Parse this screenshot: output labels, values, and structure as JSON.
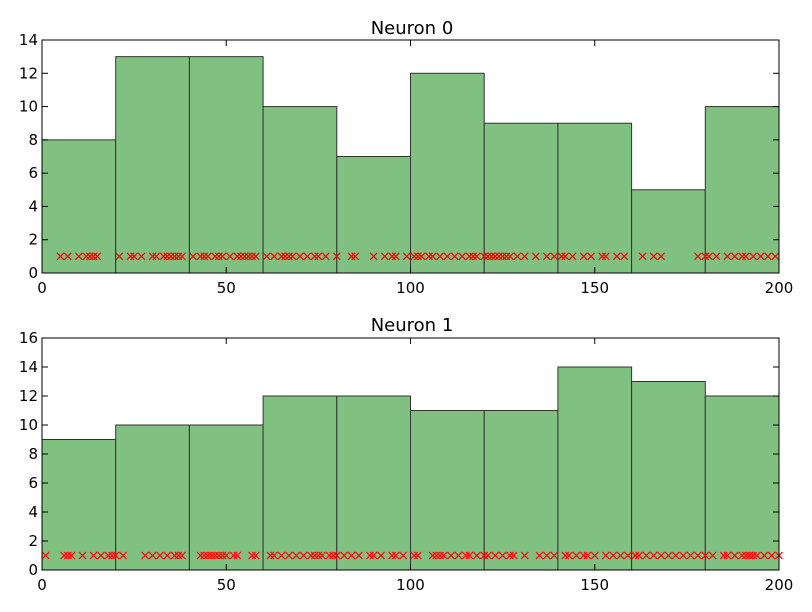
{
  "chart_data": [
    {
      "type": "bar",
      "title": "Neuron 0",
      "xlabel": "",
      "ylabel": "",
      "xlim": [
        0,
        200
      ],
      "ylim": [
        0,
        14
      ],
      "xticks": [
        "0",
        "50",
        "100",
        "150",
        "200"
      ],
      "yticks": [
        "0",
        "2",
        "4",
        "6",
        "8",
        "10",
        "12",
        "14"
      ],
      "bin_edges": [
        0,
        20,
        40,
        60,
        80,
        100,
        120,
        140,
        160,
        180,
        200
      ],
      "values": [
        8,
        13,
        13,
        10,
        7,
        12,
        9,
        9,
        5,
        10
      ],
      "spike_y": 1,
      "spike_times": [
        5,
        7,
        10,
        12,
        13,
        14,
        15,
        21,
        24,
        25,
        27,
        30,
        31,
        33,
        34,
        35,
        36,
        37,
        38,
        41,
        43,
        44,
        45,
        47,
        48,
        49,
        51,
        53,
        54,
        55,
        56,
        57,
        58,
        61,
        63,
        65,
        66,
        67,
        68,
        70,
        72,
        74,
        75,
        77,
        80,
        84,
        85,
        90,
        93,
        95,
        96,
        99,
        101,
        102,
        103,
        105,
        106,
        108,
        110,
        112,
        114,
        116,
        117,
        118,
        120,
        121,
        122,
        123,
        124,
        125,
        126,
        127,
        129,
        131,
        134,
        137,
        139,
        141,
        142,
        144,
        147,
        149,
        152,
        153,
        156,
        158,
        163,
        166,
        168,
        178,
        180,
        181,
        183,
        186,
        188,
        190,
        191,
        193,
        195,
        197,
        199
      ],
      "colors": {
        "bar_fill": "#80c080",
        "bar_edge": "#333333",
        "marker": "#ff0000"
      }
    },
    {
      "type": "bar",
      "title": "Neuron 1",
      "xlabel": "",
      "ylabel": "",
      "xlim": [
        0,
        200
      ],
      "ylim": [
        0,
        16
      ],
      "xticks": [
        "0",
        "50",
        "100",
        "150",
        "200"
      ],
      "yticks": [
        "0",
        "2",
        "4",
        "6",
        "8",
        "10",
        "12",
        "14",
        "16"
      ],
      "bin_edges": [
        0,
        20,
        40,
        60,
        80,
        100,
        120,
        140,
        160,
        180,
        200
      ],
      "values": [
        9,
        10,
        10,
        12,
        12,
        11,
        11,
        14,
        13,
        12
      ],
      "spike_y": 1,
      "spike_times": [
        1,
        6,
        7,
        8,
        11,
        14,
        16,
        18,
        19,
        20,
        22,
        28,
        30,
        32,
        34,
        36,
        37,
        38,
        43,
        44,
        45,
        46,
        47,
        48,
        49,
        50,
        52,
        53,
        57,
        58,
        62,
        63,
        65,
        67,
        69,
        71,
        73,
        74,
        75,
        76,
        78,
        79,
        80,
        82,
        84,
        86,
        89,
        90,
        92,
        95,
        96,
        98,
        101,
        102,
        106,
        107,
        108,
        109,
        111,
        113,
        115,
        116,
        118,
        120,
        121,
        123,
        125,
        127,
        128,
        131,
        135,
        137,
        139,
        142,
        143,
        145,
        147,
        148,
        150,
        153,
        155,
        157,
        159,
        161,
        162,
        164,
        166,
        168,
        170,
        172,
        174,
        176,
        178,
        180,
        182,
        185,
        186,
        188,
        190,
        191,
        192,
        193,
        194,
        196,
        198,
        200
      ]
    }
  ]
}
